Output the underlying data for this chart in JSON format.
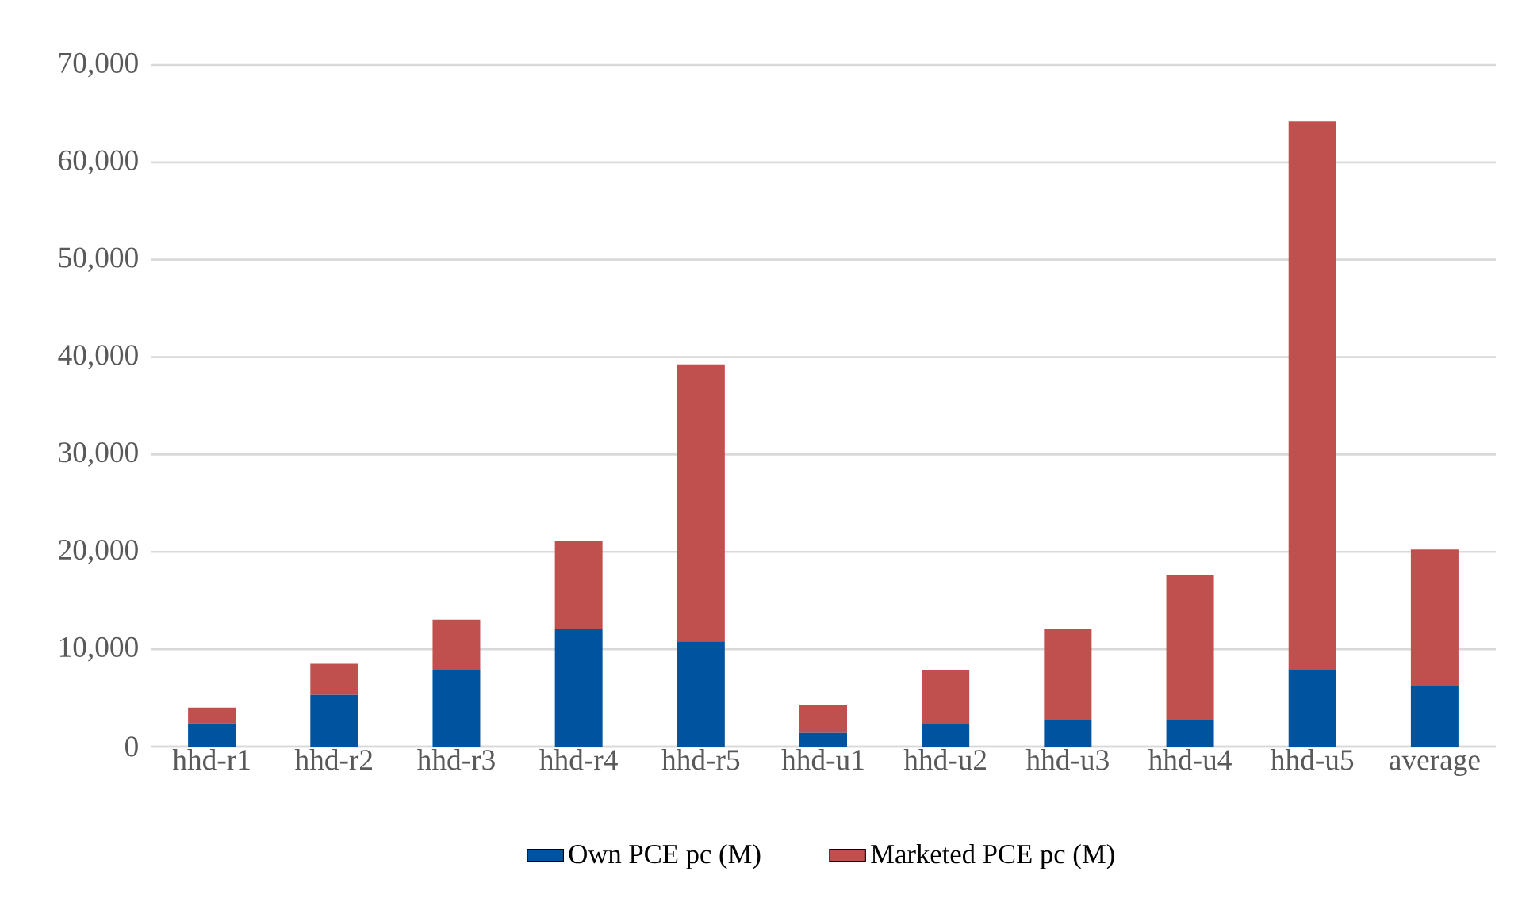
{
  "chart_data": {
    "type": "bar",
    "stacked": true,
    "categories": [
      "hhd-r1",
      "hhd-r2",
      "hhd-r3",
      "hhd-r4",
      "hhd-r5",
      "hhd-u1",
      "hhd-u2",
      "hhd-u3",
      "hhd-u4",
      "hhd-u5",
      "average"
    ],
    "series": [
      {
        "name": "Own PCE pc (M)",
        "color": "#00549f",
        "values": [
          2400,
          5300,
          7900,
          12100,
          10800,
          1400,
          2300,
          2700,
          2700,
          7900,
          6250
        ]
      },
      {
        "name": "Marketed PCE pc (M)",
        "color": "#c0504d",
        "values": [
          1600,
          3200,
          5150,
          9050,
          28450,
          2900,
          5600,
          9400,
          14950,
          56300,
          14000
        ]
      }
    ],
    "ylim": [
      0,
      70000
    ],
    "yticks": [
      {
        "value": 0,
        "label": "0"
      },
      {
        "value": 10000,
        "label": "10,000"
      },
      {
        "value": 20000,
        "label": "20,000"
      },
      {
        "value": 30000,
        "label": "30,000"
      },
      {
        "value": 40000,
        "label": "40,000"
      },
      {
        "value": 50000,
        "label": "50,000"
      },
      {
        "value": 60000,
        "label": "60,000"
      },
      {
        "value": 70000,
        "label": "70,000"
      }
    ],
    "grid": "y",
    "legend": "bottom"
  }
}
